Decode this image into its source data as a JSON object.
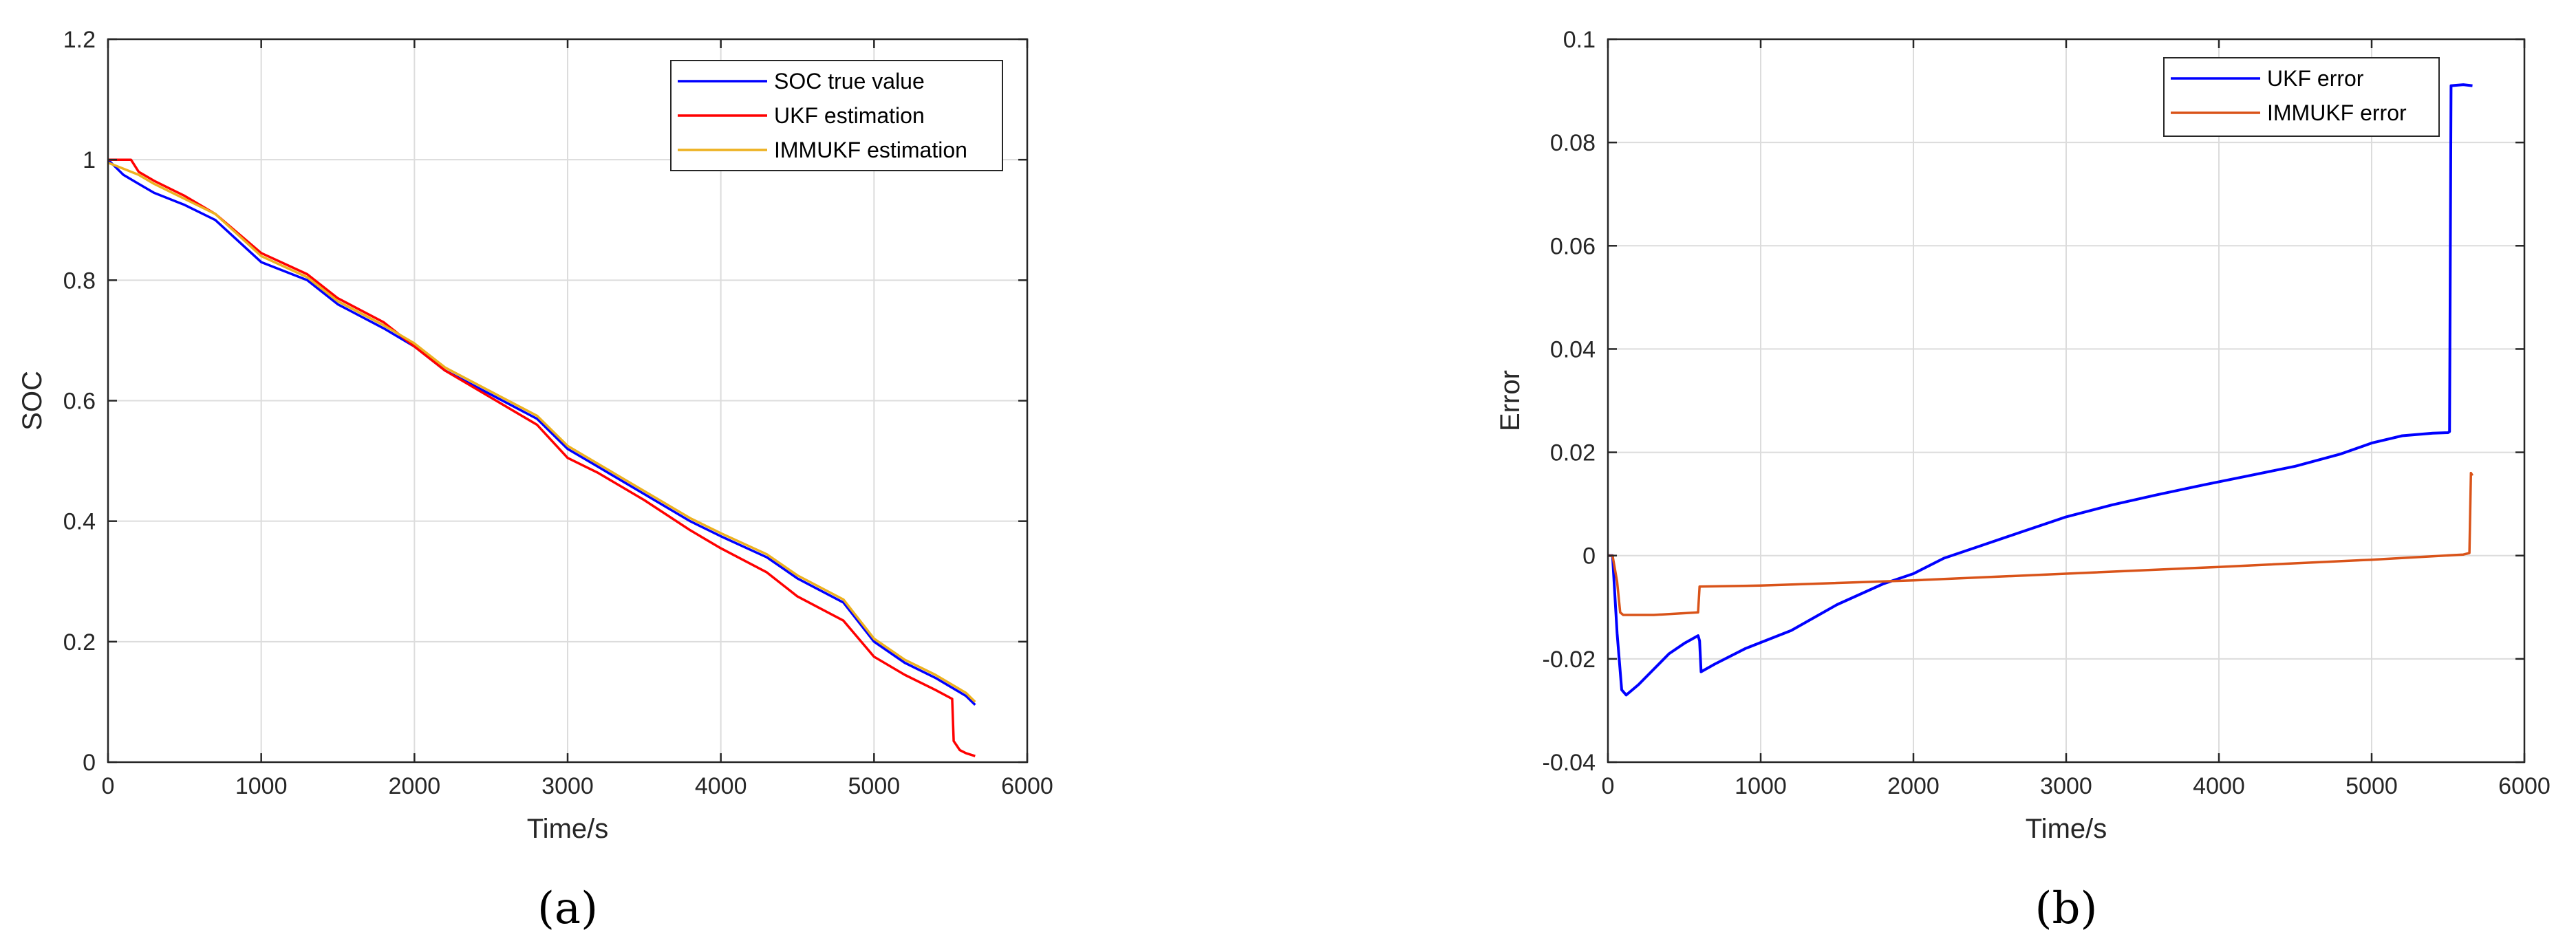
{
  "chart_data": [
    {
      "type": "line",
      "panel_label": "(a)",
      "xlabel": "Time/s",
      "ylabel": "SOC",
      "xlim": [
        0,
        6000
      ],
      "ylim": [
        0,
        1.2
      ],
      "xticks": [
        0,
        1000,
        2000,
        3000,
        4000,
        5000,
        6000
      ],
      "yticks": [
        0,
        0.2,
        0.4,
        0.6,
        0.8,
        1,
        1.2
      ],
      "xtick_labels": [
        "0",
        "1000",
        "2000",
        "3000",
        "4000",
        "5000",
        "6000"
      ],
      "ytick_labels": [
        "0",
        "0.2",
        "0.4",
        "0.6",
        "0.8",
        "1",
        "1.2"
      ],
      "grid": true,
      "legend_position": "top-right",
      "series": [
        {
          "name": "SOC true value",
          "color": "#0000ff",
          "x": [
            0,
            100,
            200,
            300,
            500,
            700,
            1000,
            1300,
            1500,
            1800,
            2000,
            2200,
            2500,
            2800,
            3000,
            3200,
            3500,
            3800,
            4000,
            4300,
            4500,
            4800,
            5000,
            5200,
            5400,
            5600,
            5660
          ],
          "y": [
            1.0,
            0.975,
            0.96,
            0.945,
            0.925,
            0.9,
            0.83,
            0.8,
            0.76,
            0.72,
            0.69,
            0.65,
            0.61,
            0.57,
            0.52,
            0.49,
            0.445,
            0.4,
            0.375,
            0.34,
            0.305,
            0.265,
            0.2,
            0.165,
            0.14,
            0.11,
            0.095
          ]
        },
        {
          "name": "UKF estimation",
          "color": "#ff0000",
          "x": [
            0,
            100,
            150,
            200,
            300,
            500,
            700,
            1000,
            1300,
            1500,
            1800,
            2000,
            2200,
            2500,
            2800,
            3000,
            3200,
            3500,
            3800,
            4000,
            4300,
            4500,
            4800,
            5000,
            5200,
            5400,
            5510,
            5520,
            5560,
            5600,
            5660
          ],
          "y": [
            1.0,
            1.0,
            1.0,
            0.98,
            0.965,
            0.94,
            0.91,
            0.845,
            0.81,
            0.77,
            0.73,
            0.69,
            0.65,
            0.605,
            0.56,
            0.505,
            0.48,
            0.435,
            0.385,
            0.355,
            0.315,
            0.275,
            0.235,
            0.175,
            0.145,
            0.12,
            0.105,
            0.035,
            0.02,
            0.015,
            0.01
          ]
        },
        {
          "name": "IMMUKF estimation",
          "color": "#edb120",
          "x": [
            0,
            100,
            200,
            300,
            500,
            700,
            1000,
            1300,
            1500,
            1800,
            2000,
            2200,
            2500,
            2800,
            3000,
            3200,
            3500,
            3800,
            4000,
            4300,
            4500,
            4800,
            5000,
            5200,
            5400,
            5600,
            5660
          ],
          "y": [
            0.995,
            0.985,
            0.975,
            0.96,
            0.935,
            0.91,
            0.84,
            0.805,
            0.765,
            0.725,
            0.695,
            0.655,
            0.615,
            0.575,
            0.525,
            0.495,
            0.45,
            0.405,
            0.38,
            0.345,
            0.31,
            0.27,
            0.205,
            0.17,
            0.145,
            0.115,
            0.1
          ]
        }
      ]
    },
    {
      "type": "line",
      "panel_label": "(b)",
      "xlabel": "Time/s",
      "ylabel": "Error",
      "xlim": [
        0,
        6000
      ],
      "ylim": [
        -0.04,
        0.1
      ],
      "xticks": [
        0,
        1000,
        2000,
        3000,
        4000,
        5000,
        6000
      ],
      "yticks": [
        -0.04,
        -0.02,
        0,
        0.02,
        0.04,
        0.06,
        0.08,
        0.1
      ],
      "xtick_labels": [
        "0",
        "1000",
        "2000",
        "3000",
        "4000",
        "5000",
        "6000"
      ],
      "ytick_labels": [
        "-0.04",
        "-0.02",
        "0",
        "0.02",
        "0.04",
        "0.06",
        "0.08",
        "0.1"
      ],
      "grid": true,
      "legend_position": "top-right",
      "series": [
        {
          "name": "UKF error",
          "color": "#0000ff",
          "x": [
            0,
            30,
            60,
            90,
            120,
            200,
            300,
            400,
            500,
            590,
            600,
            610,
            700,
            900,
            1200,
            1500,
            1800,
            2000,
            2200,
            2400,
            2700,
            3000,
            3300,
            3600,
            3900,
            4200,
            4500,
            4800,
            5000,
            5200,
            5400,
            5500,
            5510,
            5520,
            5600,
            5660
          ],
          "y": [
            0,
            0,
            -0.015,
            -0.026,
            -0.027,
            -0.025,
            -0.022,
            -0.019,
            -0.017,
            -0.0155,
            -0.0165,
            -0.0225,
            -0.021,
            -0.018,
            -0.0145,
            -0.0095,
            -0.0055,
            -0.0035,
            -0.0005,
            0.0015,
            0.0045,
            0.0075,
            0.0098,
            0.0118,
            0.0137,
            0.0155,
            0.0173,
            0.0197,
            0.0218,
            0.0232,
            0.0237,
            0.0238,
            0.024,
            0.091,
            0.0912,
            0.091
          ]
        },
        {
          "name": "IMMUKF error",
          "color": "#d95319",
          "x": [
            0,
            30,
            60,
            80,
            100,
            300,
            590,
            600,
            1000,
            2000,
            3000,
            4000,
            5000,
            5600,
            5640,
            5650,
            5660
          ],
          "y": [
            0,
            0,
            -0.005,
            -0.011,
            -0.0115,
            -0.0115,
            -0.011,
            -0.006,
            -0.0058,
            -0.0048,
            -0.0035,
            -0.0022,
            -0.0008,
            0.0002,
            0.0005,
            0.016,
            0.0155
          ]
        }
      ]
    }
  ]
}
